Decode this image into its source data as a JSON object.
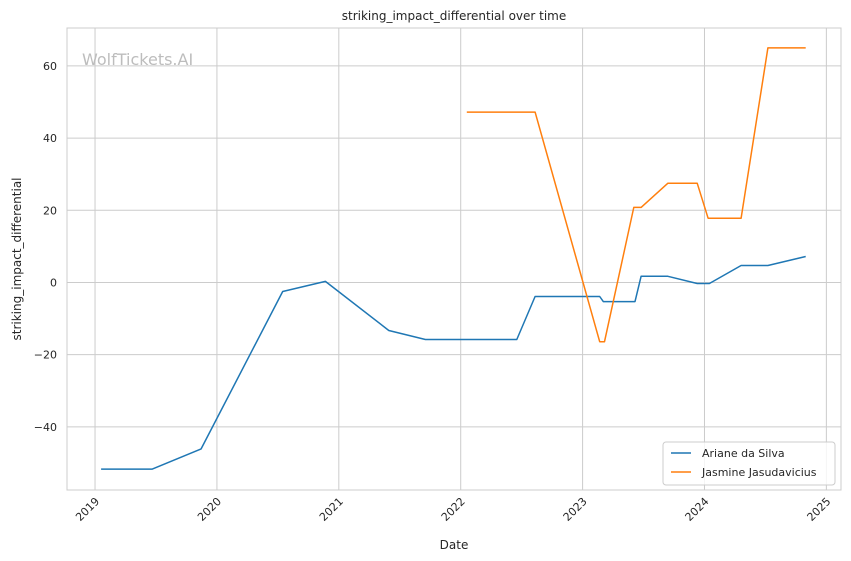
{
  "watermark": "WolfTickets.AI",
  "chart_data": {
    "type": "line",
    "title": "striking_impact_differential over time",
    "xlabel": "Date",
    "ylabel": "striking_impact_differential",
    "xlim": [
      2018.77,
      2025.12
    ],
    "ylim": [
      -57.5,
      70.5
    ],
    "x_ticks": [
      "2019",
      "2020",
      "2021",
      "2022",
      "2023",
      "2024",
      "2025"
    ],
    "y_ticks": [
      -40,
      -20,
      0,
      20,
      40,
      60
    ],
    "y_tick_labels": [
      "−40",
      "−20",
      "0",
      "20",
      "40",
      "60"
    ],
    "grid": true,
    "legend_position": "bottom-right",
    "series": [
      {
        "name": "Ariane da Silva",
        "color": "#1f77b4",
        "x": [
          2019.05,
          2019.47,
          2019.87,
          2020.54,
          2020.89,
          2021.41,
          2021.71,
          2022.46,
          2022.61,
          2023.14,
          2023.17,
          2023.43,
          2023.48,
          2023.7,
          2023.94,
          2024.04,
          2024.3,
          2024.52,
          2024.83
        ],
        "y": [
          -51.7,
          -51.7,
          -46.1,
          -2.5,
          0.3,
          -13.3,
          -15.8,
          -15.8,
          -3.9,
          -3.9,
          -5.3,
          -5.3,
          1.7,
          1.7,
          -0.3,
          -0.3,
          4.7,
          4.7,
          7.2
        ]
      },
      {
        "name": "Jasmine Jasudavicius",
        "color": "#ff7f0e",
        "x": [
          2022.05,
          2022.61,
          2023.14,
          2023.18,
          2023.42,
          2023.48,
          2023.7,
          2023.94,
          2024.03,
          2024.3,
          2024.52,
          2024.83
        ],
        "y": [
          47.2,
          47.2,
          -16.4,
          -16.4,
          20.8,
          20.8,
          27.5,
          27.5,
          17.8,
          17.8,
          65,
          65
        ]
      }
    ]
  }
}
